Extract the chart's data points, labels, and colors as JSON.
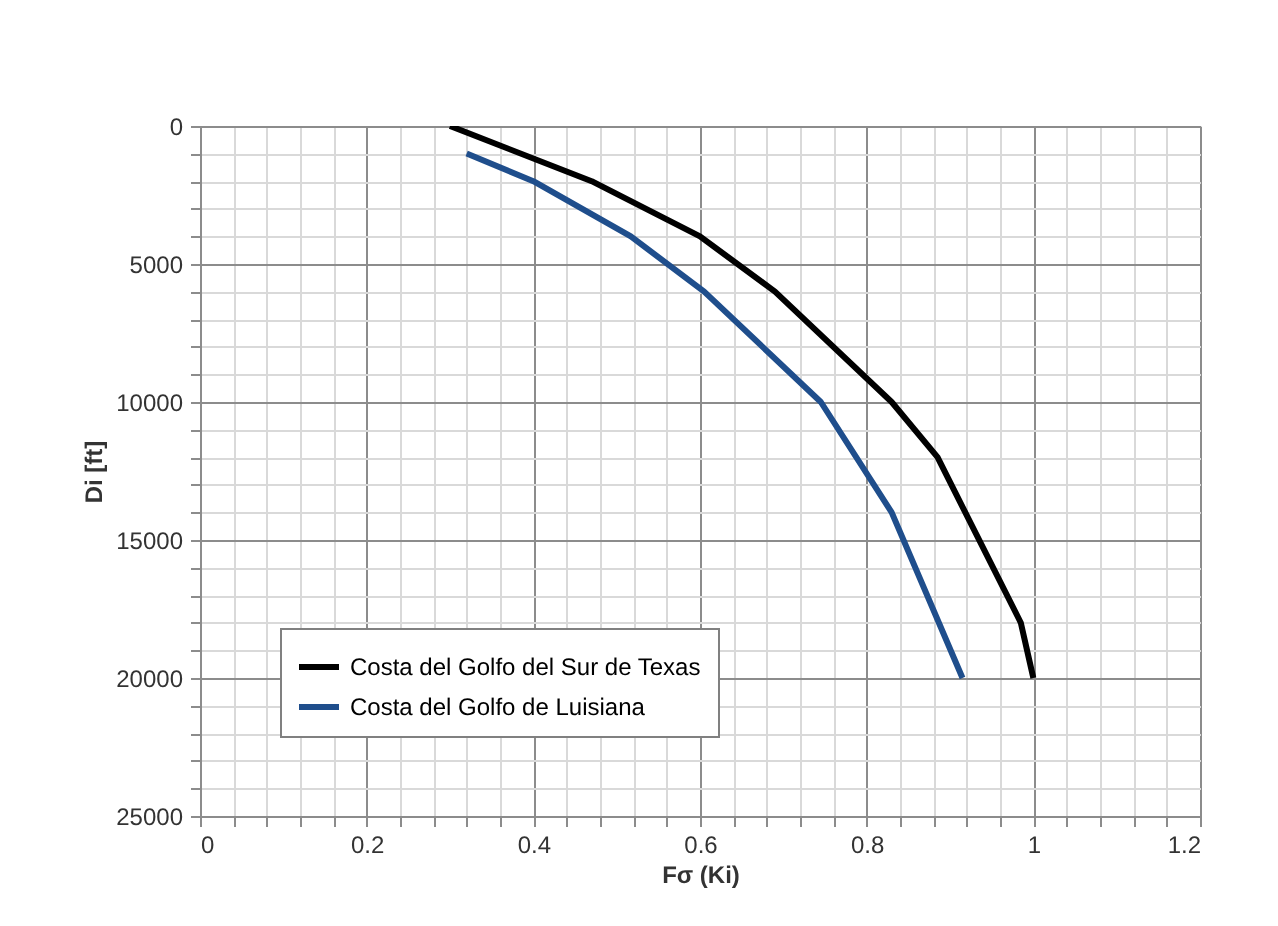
{
  "chart_data": {
    "type": "line",
    "xlabel": "Fσ (Ki)",
    "ylabel": "Di [ft]",
    "series": [
      {
        "name": "Costa del Golfo del Sur de Texas",
        "color": "#000000",
        "x": [
          0.3,
          0.47,
          0.6,
          0.69,
          0.83,
          0.885,
          0.985,
          1.0
        ],
        "values": [
          0,
          2000,
          4000,
          6000,
          10000,
          12000,
          18000,
          20000
        ]
      },
      {
        "name": "Costa del Golfo de Luisiana",
        "color": "#1f4e8c",
        "x": [
          0.32,
          0.4,
          0.517,
          0.605,
          0.745,
          0.83,
          0.915
        ],
        "values": [
          1000,
          2000,
          4000,
          6000,
          10000,
          14000,
          20000
        ]
      }
    ],
    "xlim": [
      0,
      1.2
    ],
    "xticks": [
      0,
      {
        "value": 0.04,
        "label": null
      },
      {
        "value": 0.08,
        "label": null
      },
      {
        "value": 0.12,
        "label": null
      },
      {
        "value": 0.16,
        "label": null
      },
      0.2,
      {
        "value": 0.24,
        "label": null
      },
      {
        "value": 0.28,
        "label": null
      },
      {
        "value": 0.32,
        "label": null
      },
      {
        "value": 0.36,
        "label": null
      },
      0.4,
      {
        "value": 0.44,
        "label": null
      },
      {
        "value": 0.48,
        "label": null
      },
      {
        "value": 0.52,
        "label": null
      },
      {
        "value": 0.56,
        "label": null
      },
      0.6,
      {
        "value": 0.64,
        "label": null
      },
      {
        "value": 0.68,
        "label": null
      },
      {
        "value": 0.72,
        "label": null
      },
      {
        "value": 0.76,
        "label": null
      },
      0.8,
      {
        "value": 0.84,
        "label": null
      },
      {
        "value": 0.88,
        "label": null
      },
      {
        "value": 0.92,
        "label": null
      },
      {
        "value": 0.96,
        "label": null
      },
      1,
      {
        "value": 1.04,
        "label": null
      },
      {
        "value": 1.08,
        "label": null
      },
      {
        "value": 1.12,
        "label": null
      },
      {
        "value": 1.16,
        "label": null
      },
      1.2
    ],
    "ylim": [
      25000,
      0
    ],
    "yticks": [
      0,
      {
        "value": 1000,
        "label": null
      },
      {
        "value": 2000,
        "label": null
      },
      {
        "value": 3000,
        "label": null
      },
      {
        "value": 4000,
        "label": null
      },
      5000,
      {
        "value": 6000,
        "label": null
      },
      {
        "value": 7000,
        "label": null
      },
      {
        "value": 8000,
        "label": null
      },
      {
        "value": 9000,
        "label": null
      },
      10000,
      {
        "value": 11000,
        "label": null
      },
      {
        "value": 12000,
        "label": null
      },
      {
        "value": 13000,
        "label": null
      },
      {
        "value": 14000,
        "label": null
      },
      15000,
      {
        "value": 16000,
        "label": null
      },
      {
        "value": 17000,
        "label": null
      },
      {
        "value": 18000,
        "label": null
      },
      {
        "value": 19000,
        "label": null
      },
      20000,
      {
        "value": 21000,
        "label": null
      },
      {
        "value": 22000,
        "label": null
      },
      {
        "value": 23000,
        "label": null
      },
      {
        "value": 24000,
        "label": null
      },
      25000
    ],
    "grid": true,
    "legend": "bottom left",
    "marker": "none",
    "line_style": "solid"
  }
}
